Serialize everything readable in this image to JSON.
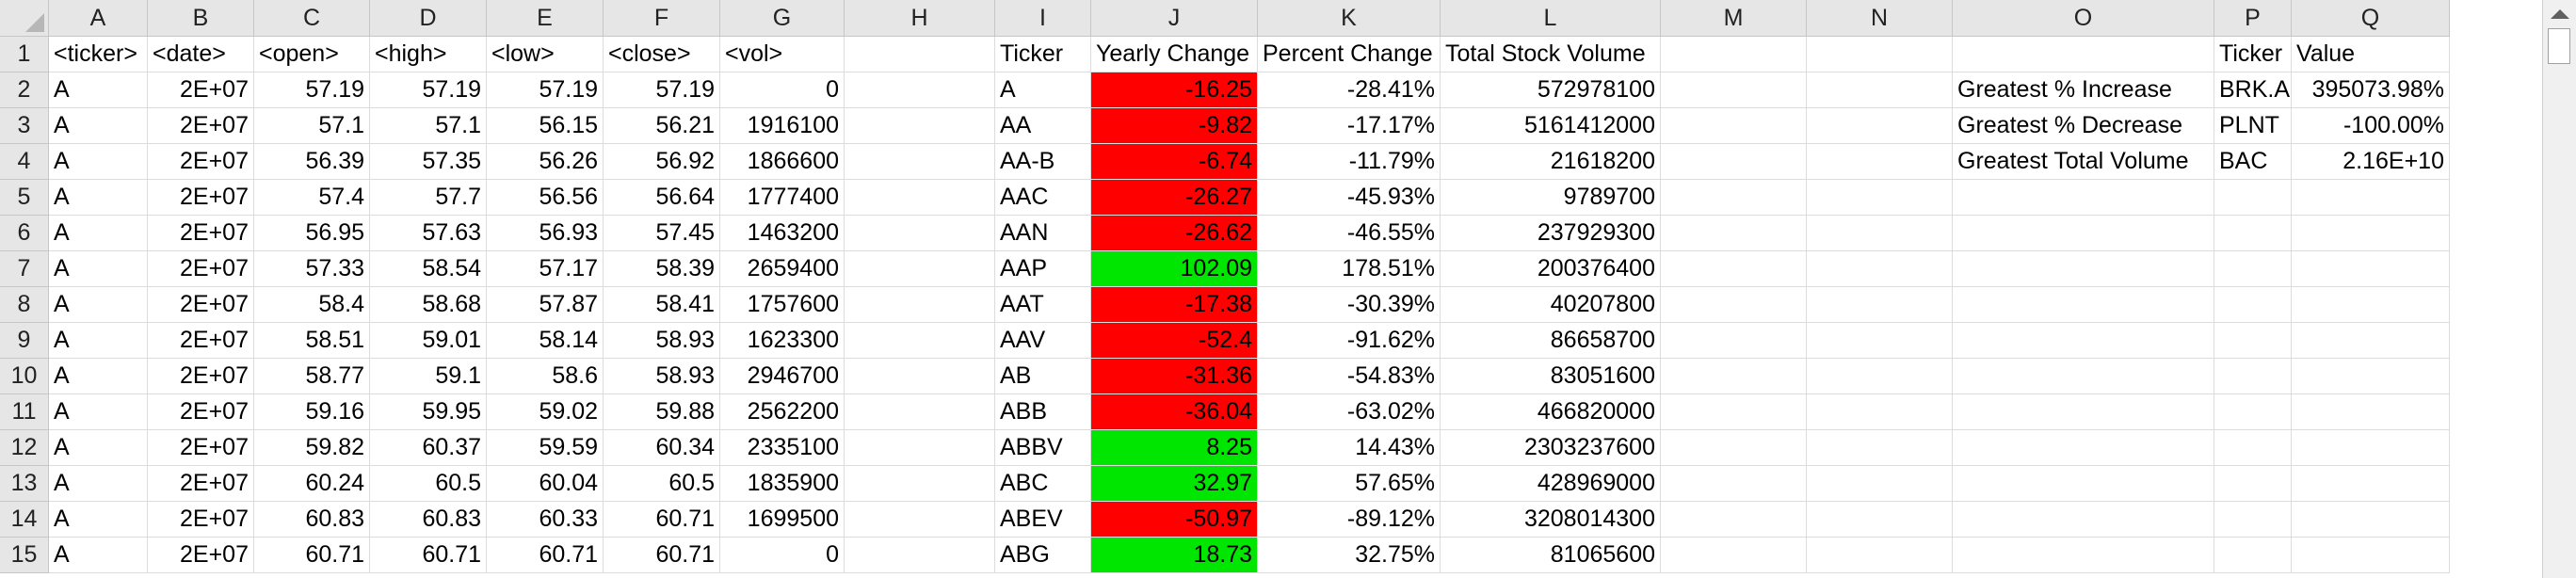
{
  "columns": [
    "A",
    "B",
    "C",
    "D",
    "E",
    "F",
    "G",
    "H",
    "I",
    "J",
    "K",
    "L",
    "M",
    "N",
    "O",
    "P",
    "Q"
  ],
  "rows": [
    {
      "num": "1",
      "cells": {
        "A": "<ticker>",
        "B": "<date>",
        "C": "<open>",
        "D": "<high>",
        "E": "<low>",
        "F": "<close>",
        "G": "<vol>",
        "I": "Ticker",
        "J": "Yearly Change",
        "K": "Percent Change",
        "L": "Total Stock Volume",
        "P": "Ticker",
        "Q": "Value"
      }
    },
    {
      "num": "2",
      "cells": {
        "A": "A",
        "B": "2E+07",
        "C": "57.19",
        "D": "57.19",
        "E": "57.19",
        "F": "57.19",
        "G": "0",
        "I": "A",
        "J": "-16.25",
        "K": "-28.41%",
        "L": "572978100",
        "O": "Greatest % Increase",
        "P": "BRK.A",
        "Q": "395073.98%"
      },
      "j_fill": "red"
    },
    {
      "num": "3",
      "cells": {
        "A": "A",
        "B": "2E+07",
        "C": "57.1",
        "D": "57.1",
        "E": "56.15",
        "F": "56.21",
        "G": "1916100",
        "I": "AA",
        "J": "-9.82",
        "K": "-17.17%",
        "L": "5161412000",
        "O": "Greatest % Decrease",
        "P": "PLNT",
        "Q": "-100.00%"
      },
      "j_fill": "red"
    },
    {
      "num": "4",
      "cells": {
        "A": "A",
        "B": "2E+07",
        "C": "56.39",
        "D": "57.35",
        "E": "56.26",
        "F": "56.92",
        "G": "1866600",
        "I": "AA-B",
        "J": "-6.74",
        "K": "-11.79%",
        "L": "21618200",
        "O": "Greatest Total Volume",
        "P": "BAC",
        "Q": "2.16E+10"
      },
      "j_fill": "red"
    },
    {
      "num": "5",
      "cells": {
        "A": "A",
        "B": "2E+07",
        "C": "57.4",
        "D": "57.7",
        "E": "56.56",
        "F": "56.64",
        "G": "1777400",
        "I": "AAC",
        "J": "-26.27",
        "K": "-45.93%",
        "L": "9789700"
      },
      "j_fill": "red"
    },
    {
      "num": "6",
      "cells": {
        "A": "A",
        "B": "2E+07",
        "C": "56.95",
        "D": "57.63",
        "E": "56.93",
        "F": "57.45",
        "G": "1463200",
        "I": "AAN",
        "J": "-26.62",
        "K": "-46.55%",
        "L": "237929300"
      },
      "j_fill": "red"
    },
    {
      "num": "7",
      "cells": {
        "A": "A",
        "B": "2E+07",
        "C": "57.33",
        "D": "58.54",
        "E": "57.17",
        "F": "58.39",
        "G": "2659400",
        "I": "AAP",
        "J": "102.09",
        "K": "178.51%",
        "L": "200376400"
      },
      "j_fill": "green"
    },
    {
      "num": "8",
      "cells": {
        "A": "A",
        "B": "2E+07",
        "C": "58.4",
        "D": "58.68",
        "E": "57.87",
        "F": "58.41",
        "G": "1757600",
        "I": "AAT",
        "J": "-17.38",
        "K": "-30.39%",
        "L": "40207800"
      },
      "j_fill": "red"
    },
    {
      "num": "9",
      "cells": {
        "A": "A",
        "B": "2E+07",
        "C": "58.51",
        "D": "59.01",
        "E": "58.14",
        "F": "58.93",
        "G": "1623300",
        "I": "AAV",
        "J": "-52.4",
        "K": "-91.62%",
        "L": "86658700"
      },
      "j_fill": "red"
    },
    {
      "num": "10",
      "cells": {
        "A": "A",
        "B": "2E+07",
        "C": "58.77",
        "D": "59.1",
        "E": "58.6",
        "F": "58.93",
        "G": "2946700",
        "I": "AB",
        "J": "-31.36",
        "K": "-54.83%",
        "L": "83051600"
      },
      "j_fill": "red"
    },
    {
      "num": "11",
      "cells": {
        "A": "A",
        "B": "2E+07",
        "C": "59.16",
        "D": "59.95",
        "E": "59.02",
        "F": "59.88",
        "G": "2562200",
        "I": "ABB",
        "J": "-36.04",
        "K": "-63.02%",
        "L": "466820000"
      },
      "j_fill": "red"
    },
    {
      "num": "12",
      "cells": {
        "A": "A",
        "B": "2E+07",
        "C": "59.82",
        "D": "60.37",
        "E": "59.59",
        "F": "60.34",
        "G": "2335100",
        "I": "ABBV",
        "J": "8.25",
        "K": "14.43%",
        "L": "2303237600"
      },
      "j_fill": "green"
    },
    {
      "num": "13",
      "cells": {
        "A": "A",
        "B": "2E+07",
        "C": "60.24",
        "D": "60.5",
        "E": "60.04",
        "F": "60.5",
        "G": "1835900",
        "I": "ABC",
        "J": "32.97",
        "K": "57.65%",
        "L": "428969000"
      },
      "j_fill": "green"
    },
    {
      "num": "14",
      "cells": {
        "A": "A",
        "B": "2E+07",
        "C": "60.83",
        "D": "60.83",
        "E": "60.33",
        "F": "60.71",
        "G": "1699500",
        "I": "ABEV",
        "J": "-50.97",
        "K": "-89.12%",
        "L": "3208014300"
      },
      "j_fill": "red"
    },
    {
      "num": "15",
      "cells": {
        "A": "A",
        "B": "2E+07",
        "C": "60.71",
        "D": "60.71",
        "E": "60.71",
        "F": "60.71",
        "G": "0",
        "I": "ABG",
        "J": "18.73",
        "K": "32.75%",
        "L": "81065600"
      },
      "j_fill": "green"
    }
  ],
  "colors": {
    "negative_fill": "#ff0000",
    "positive_fill": "#00e600",
    "header_bg": "#e6e6e6"
  }
}
